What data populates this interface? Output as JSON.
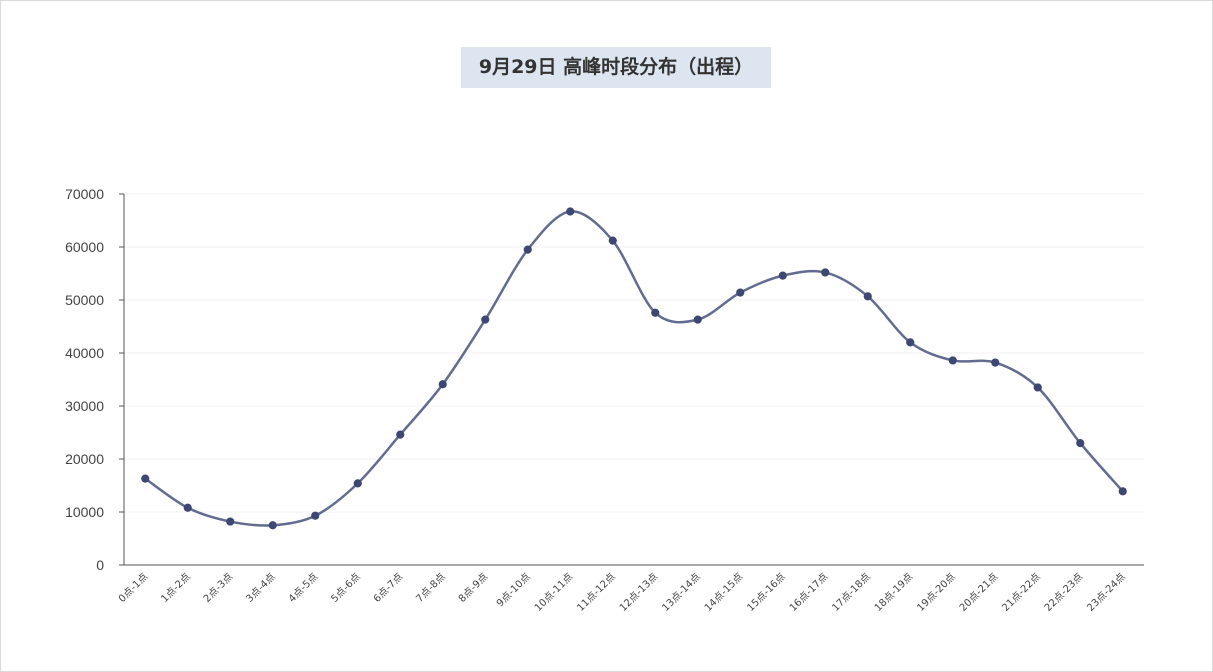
{
  "chart_data": {
    "type": "line",
    "title": "9月29日 高峰时段分布（出程）",
    "categories": [
      "0点-1点",
      "1点-2点",
      "2点-3点",
      "3点-4点",
      "4点-5点",
      "5点-6点",
      "6点-7点",
      "7点-8点",
      "8点-9点",
      "9点-10点",
      "10点-11点",
      "11点-12点",
      "12点-13点",
      "13点-14点",
      "14点-15点",
      "15点-16点",
      "16点-17点",
      "17点-18点",
      "18点-19点",
      "19点-20点",
      "20点-21点",
      "21点-22点",
      "22点-23点",
      "23点-24点"
    ],
    "series": [
      {
        "values": [
          16300,
          10800,
          8200,
          7500,
          9300,
          15400,
          24600,
          34100,
          46300,
          59500,
          66700,
          61200,
          47600,
          46300,
          51400,
          54600,
          55200,
          50700,
          42000,
          38600,
          38200,
          33500,
          23000,
          13900
        ],
        "color": "#626c91",
        "smooth": true
      }
    ],
    "ylim": [
      0,
      70000
    ],
    "yticks": [
      0,
      10000,
      20000,
      30000,
      40000,
      50000,
      60000,
      70000
    ],
    "grid": true,
    "title_background": "#dde5f1"
  }
}
